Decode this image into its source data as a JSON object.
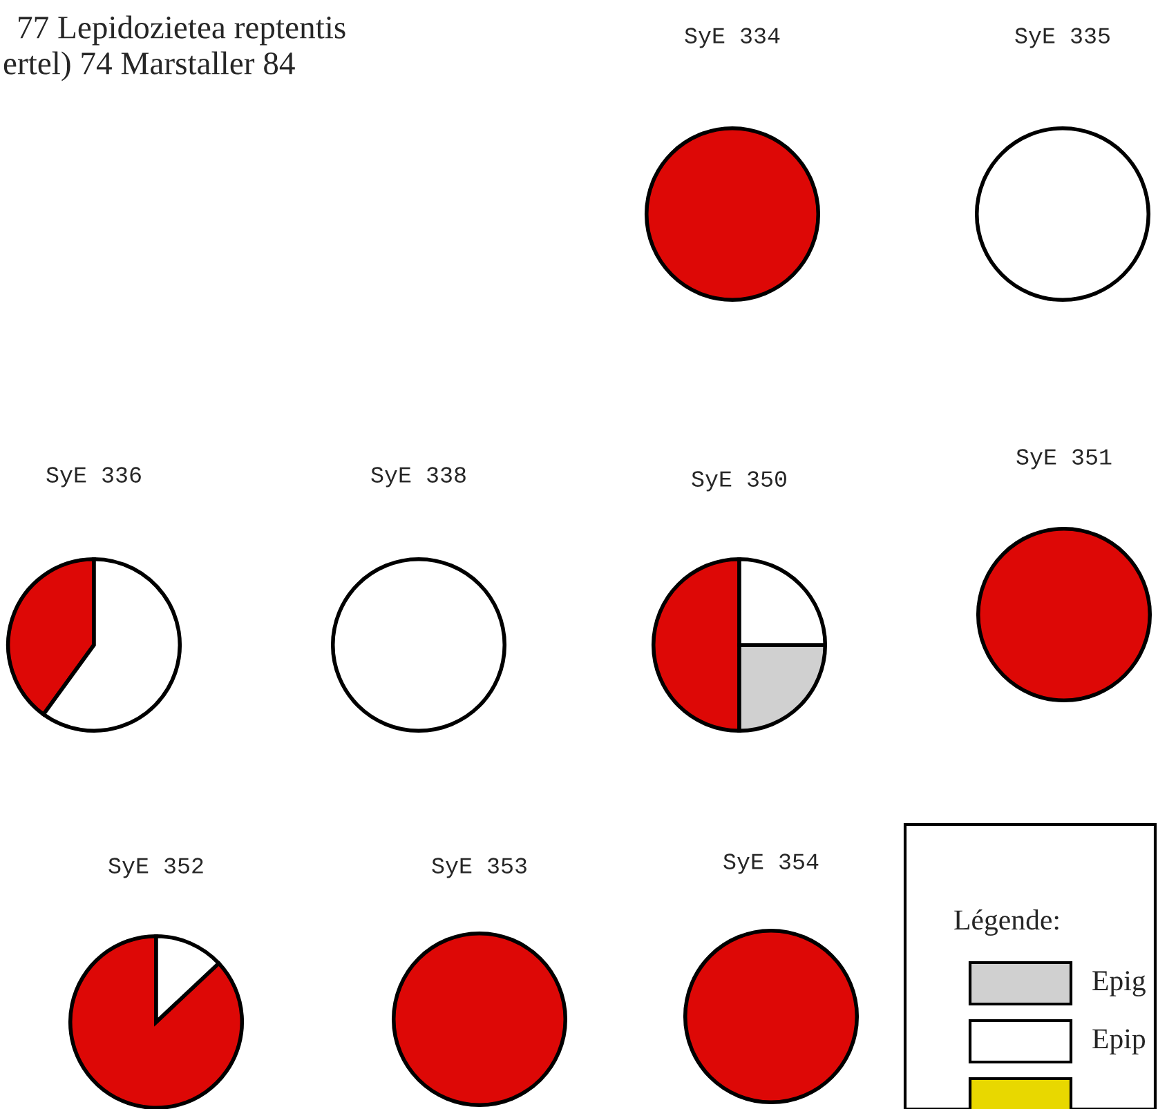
{
  "chart_data": [
    {
      "type": "other",
      "title": "77 Lepidozietea reptentis",
      "subtitle": "ertel) 74 Marstaller 84"
    },
    {
      "type": "pie",
      "title": "SyE 334",
      "categories": [
        null
      ],
      "values": [
        100
      ],
      "colors": [
        "#dd0806"
      ]
    },
    {
      "type": "pie",
      "title": "SyE 335",
      "categories": [
        null
      ],
      "values": [
        100
      ],
      "colors": [
        "#ffffff"
      ]
    },
    {
      "type": "pie",
      "title": "SyE 336",
      "categories": [
        null,
        null
      ],
      "values": [
        40,
        60
      ],
      "colors": [
        "#dd0806",
        "#ffffff"
      ]
    },
    {
      "type": "pie",
      "title": "SyE 338",
      "categories": [
        null
      ],
      "values": [
        100
      ],
      "colors": [
        "#ffffff"
      ]
    },
    {
      "type": "pie",
      "title": "SyE 350",
      "categories": [
        null,
        null,
        null
      ],
      "values": [
        50,
        25,
        25
      ],
      "colors": [
        "#dd0806",
        "#d0d0d0",
        "#ffffff"
      ]
    },
    {
      "type": "pie",
      "title": "SyE 351",
      "categories": [
        null
      ],
      "values": [
        100
      ],
      "colors": [
        "#dd0806"
      ]
    },
    {
      "type": "pie",
      "title": "SyE 352",
      "categories": [
        null,
        null
      ],
      "values": [
        87,
        13
      ],
      "colors": [
        "#dd0806",
        "#ffffff"
      ]
    },
    {
      "type": "pie",
      "title": "SyE 353",
      "categories": [
        null
      ],
      "values": [
        100
      ],
      "colors": [
        "#dd0806"
      ]
    },
    {
      "type": "pie",
      "title": "SyE 354",
      "categories": [
        null
      ],
      "values": [
        100
      ],
      "colors": [
        "#dd0806"
      ]
    },
    {
      "type": "other",
      "legend_title": "Légende:",
      "categories": [
        "Epig",
        "Epip",
        null
      ],
      "colors": [
        "#d0d0d0",
        "#ffffff",
        "#e8d800"
      ]
    }
  ]
}
